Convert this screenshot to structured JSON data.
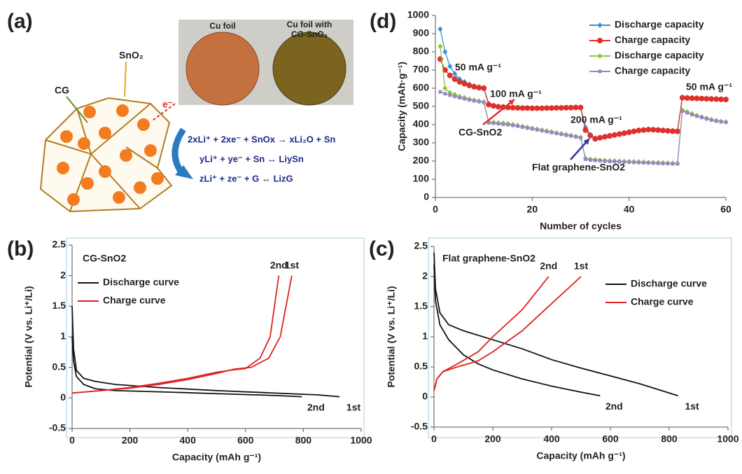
{
  "panel_a": {
    "label": "(a)",
    "photo_labels": [
      "Cu foil",
      "Cu foil with",
      "CG-SnO₂"
    ],
    "cg": "CG",
    "sno2": "SnO₂",
    "electron": "e⁻",
    "equations": [
      "2xLi⁺ + 2xe⁻ + SnOx → xLi₂O + Sn",
      "yLi⁺ + ye⁻ + Sn ↔ LiySn",
      "zLi⁺ + ze⁻ + G ↔ LizG"
    ]
  },
  "chart_data": [
    {
      "type": "line",
      "label": "(d)",
      "x_label": "Number of cycles",
      "y_label": "Capacity  (mAh·g⁻¹)",
      "xlim": [
        0,
        60
      ],
      "xticks": [
        0,
        20,
        40,
        60
      ],
      "ylim": [
        0,
        1000
      ],
      "yticks": [
        0,
        100,
        200,
        300,
        400,
        500,
        600,
        700,
        800,
        900,
        1000
      ],
      "legend": "upper right",
      "annotations": [
        "50 mA g⁻¹",
        "100 mA g⁻¹",
        "200 mA g⁻¹",
        "CG-SnO2",
        "Flat graphene-SnO2",
        "50 mA g⁻¹"
      ],
      "x": [
        1,
        2,
        3,
        4,
        5,
        6,
        7,
        8,
        9,
        10,
        11,
        12,
        13,
        14,
        15,
        16,
        17,
        18,
        19,
        20,
        21,
        22,
        23,
        24,
        25,
        26,
        27,
        28,
        29,
        30,
        31,
        32,
        33,
        34,
        35,
        36,
        37,
        38,
        39,
        40,
        41,
        42,
        43,
        44,
        45,
        46,
        47,
        48,
        49,
        50,
        51,
        52,
        53,
        54,
        55,
        56,
        57,
        58,
        59,
        60
      ],
      "series": [
        {
          "name": "Discharge capacity",
          "color": "#3a8fd6",
          "marker": "diamond",
          "values": [
            925,
            800,
            720,
            680,
            650,
            635,
            622,
            613,
            607,
            603,
            515,
            505,
            500,
            498,
            496,
            494,
            493,
            492,
            492,
            491,
            491,
            491,
            492,
            492,
            493,
            493,
            494,
            494,
            495,
            495,
            385,
            345,
            325,
            330,
            335,
            340,
            345,
            350,
            355,
            360,
            365,
            370,
            372,
            375,
            374,
            372,
            370,
            368,
            366,
            365,
            550,
            548,
            547,
            546,
            545,
            544,
            543,
            542,
            541,
            540
          ]
        },
        {
          "name": "Charge capacity",
          "color": "#e0302b",
          "marker": "circle",
          "values": [
            760,
            700,
            670,
            650,
            635,
            625,
            615,
            608,
            603,
            600,
            510,
            503,
            498,
            496,
            494,
            493,
            492,
            491,
            491,
            490,
            490,
            490,
            491,
            491,
            492,
            492,
            493,
            493,
            494,
            494,
            370,
            340,
            322,
            328,
            333,
            338,
            343,
            348,
            353,
            358,
            363,
            368,
            370,
            373,
            372,
            370,
            368,
            366,
            364,
            363,
            548,
            546,
            545,
            544,
            543,
            542,
            541,
            540,
            539,
            538
          ]
        },
        {
          "name": "Discharge capacity",
          "color": "#8cc63f",
          "marker": "diamond",
          "values": [
            830,
            600,
            575,
            565,
            555,
            548,
            540,
            535,
            530,
            525,
            415,
            412,
            410,
            408,
            405,
            400,
            395,
            390,
            385,
            380,
            375,
            370,
            365,
            360,
            355,
            350,
            345,
            340,
            335,
            330,
            215,
            210,
            207,
            205,
            203,
            201,
            200,
            199,
            198,
            197,
            196,
            195,
            194,
            193,
            192,
            191,
            190,
            189,
            188,
            187,
            480,
            470,
            460,
            450,
            442,
            435,
            428,
            422,
            418,
            415
          ]
        },
        {
          "name": "Charge capacity",
          "color": "#9a86c4",
          "marker": "square",
          "values": [
            580,
            570,
            562,
            555,
            548,
            542,
            536,
            531,
            527,
            522,
            410,
            408,
            405,
            402,
            400,
            396,
            392,
            387,
            382,
            377,
            372,
            367,
            362,
            357,
            352,
            347,
            342,
            338,
            333,
            328,
            210,
            206,
            204,
            202,
            200,
            198,
            197,
            196,
            195,
            194,
            193,
            192,
            191,
            190,
            189,
            188,
            187,
            186,
            185,
            185,
            475,
            465,
            455,
            447,
            440,
            432,
            425,
            420,
            416,
            413
          ]
        }
      ]
    },
    {
      "type": "line",
      "label": "(b)",
      "x_label": "Capacity (mAh g⁻¹)",
      "y_label": "Potential (V vs. Li⁺/Li)",
      "xlim": [
        0,
        1000
      ],
      "xticks": [
        0,
        200,
        400,
        600,
        800,
        1000
      ],
      "ylim": [
        -0.5,
        2.5
      ],
      "yticks": [
        -0.5,
        0,
        0.5,
        1,
        1.5,
        2,
        2.5
      ],
      "legend": "upper left",
      "annotations": [
        "CG-SnO2"
      ],
      "series": [
        {
          "name": "Discharge curve",
          "color": "#111111",
          "curves": [
            {
              "label": "1st",
              "x": [
                0,
                5,
                15,
                40,
                80,
                150,
                300,
                500,
                700,
                850,
                925
              ],
              "y": [
                1.5,
                0.8,
                0.45,
                0.32,
                0.27,
                0.22,
                0.17,
                0.12,
                0.08,
                0.05,
                0.02
              ]
            },
            {
              "label": "2nd",
              "x": [
                0,
                5,
                15,
                40,
                80,
                150,
                300,
                500,
                700,
                795
              ],
              "y": [
                1.0,
                0.6,
                0.35,
                0.22,
                0.15,
                0.12,
                0.1,
                0.07,
                0.04,
                0.02
              ]
            }
          ]
        },
        {
          "name": "Charge curve",
          "color": "#e02020",
          "curves": [
            {
              "label": "1st",
              "x": [
                0,
                100,
                200,
                300,
                400,
                500,
                560,
                620,
                680,
                720,
                740,
                760
              ],
              "y": [
                0.08,
                0.12,
                0.16,
                0.22,
                0.3,
                0.4,
                0.47,
                0.5,
                0.65,
                1.0,
                1.5,
                2.0
              ]
            },
            {
              "label": "2nd",
              "x": [
                0,
                100,
                200,
                300,
                400,
                500,
                560,
                600,
                650,
                685,
                700,
                715
              ],
              "y": [
                0.08,
                0.12,
                0.17,
                0.24,
                0.32,
                0.42,
                0.46,
                0.48,
                0.65,
                1.0,
                1.5,
                2.0
              ]
            }
          ]
        }
      ]
    },
    {
      "type": "line",
      "label": "(c)",
      "x_label": "Capacity (mAh g⁻¹)",
      "y_label": "Potential (V vs. Li⁺/Li)",
      "xlim": [
        0,
        1000
      ],
      "xticks": [
        0,
        200,
        400,
        600,
        800,
        1000
      ],
      "ylim": [
        -0.5,
        2.5
      ],
      "yticks": [
        -0.5,
        0,
        0.5,
        1,
        1.5,
        2,
        2.5
      ],
      "legend": "upper right",
      "annotations": [
        "Flat graphene-SnO2"
      ],
      "series": [
        {
          "name": "Discharge curve",
          "color": "#111111",
          "curves": [
            {
              "label": "1st",
              "x": [
                0,
                5,
                20,
                50,
                100,
                200,
                300,
                400,
                500,
                600,
                700,
                830
              ],
              "y": [
                2.4,
                1.8,
                1.4,
                1.2,
                1.1,
                0.95,
                0.8,
                0.62,
                0.48,
                0.35,
                0.22,
                0.02
              ]
            },
            {
              "label": "2nd",
              "x": [
                0,
                5,
                20,
                50,
                100,
                150,
                200,
                300,
                400,
                500,
                565
              ],
              "y": [
                2.2,
                1.6,
                1.2,
                0.95,
                0.7,
                0.55,
                0.45,
                0.3,
                0.18,
                0.08,
                0.02
              ]
            }
          ]
        },
        {
          "name": "Charge curve",
          "color": "#e02020",
          "curves": [
            {
              "label": "1st",
              "x": [
                0,
                10,
                30,
                80,
                150,
                200,
                300,
                400,
                500
              ],
              "y": [
                0.1,
                0.3,
                0.42,
                0.5,
                0.6,
                0.75,
                1.1,
                1.55,
                2.0
              ]
            },
            {
              "label": "2nd",
              "x": [
                0,
                10,
                30,
                80,
                150,
                200,
                300,
                390
              ],
              "y": [
                0.1,
                0.3,
                0.42,
                0.55,
                0.75,
                1.0,
                1.45,
                2.0
              ]
            }
          ]
        }
      ]
    }
  ]
}
